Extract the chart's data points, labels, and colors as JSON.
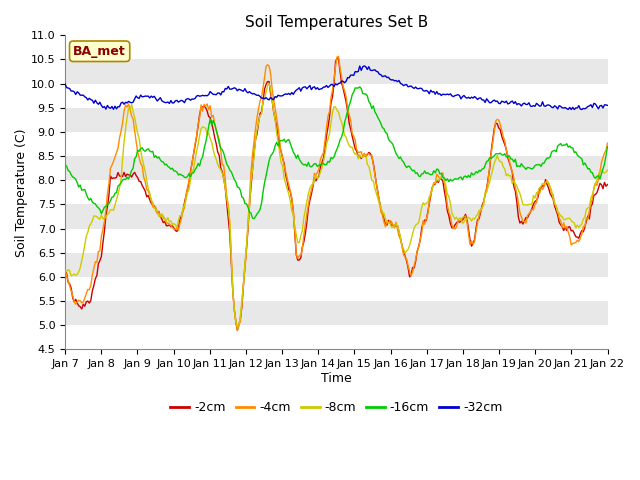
{
  "title": "Soil Temperatures Set B",
  "xlabel": "Time",
  "ylabel": "Soil Temperature (C)",
  "ylim": [
    4.5,
    11.0
  ],
  "annotation": "BA_met",
  "annotation_color": "#8B0000",
  "annotation_bg": "#FFFFCC",
  "colors": {
    "-2cm": "#CC0000",
    "-4cm": "#FF8C00",
    "-8cm": "#CCCC00",
    "-16cm": "#00CC00",
    "-32cm": "#0000CC"
  },
  "legend_labels": [
    "-2cm",
    "-4cm",
    "-8cm",
    "-16cm",
    "-32cm"
  ],
  "x_tick_labels": [
    "Jan 7",
    "Jan 8",
    "Jan 9",
    "Jan 10",
    "Jan 11",
    "Jan 12",
    "Jan 13",
    "Jan 14",
    "Jan 15",
    "Jan 16",
    "Jan 17",
    "Jan 18",
    "Jan 19",
    "Jan 20",
    "Jan 21",
    "Jan 22"
  ],
  "bg_color": "#E8E8E8",
  "stripe_color_dark": "#D8D8D8",
  "stripe_color_light": "#E8E8E8"
}
